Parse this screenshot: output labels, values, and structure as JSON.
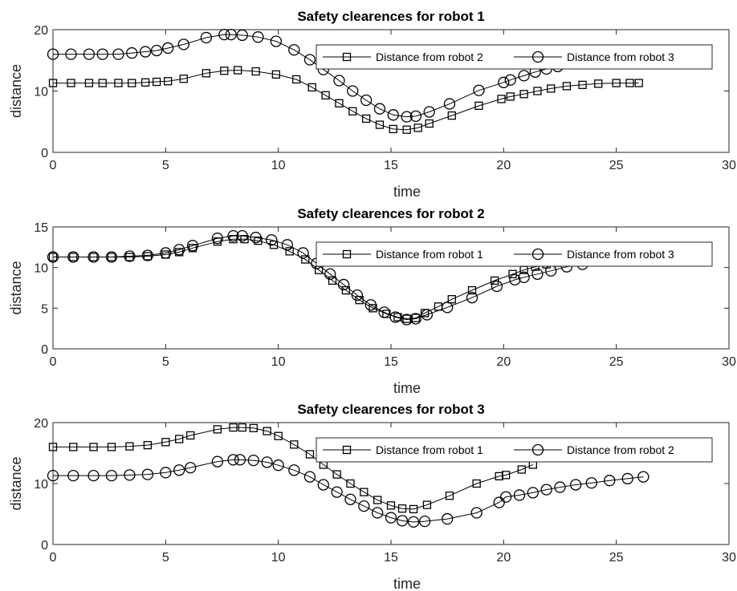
{
  "chart_data": [
    {
      "type": "line",
      "title": "Safety clearences for robot 1",
      "xlabel": "time",
      "ylabel": "distance",
      "xlim": [
        0,
        30
      ],
      "ylim": [
        0,
        20
      ],
      "xticks": [
        0,
        5,
        10,
        15,
        20,
        25,
        30
      ],
      "yticks": [
        0,
        10,
        20
      ],
      "grid": false,
      "legend_placement": "top-right",
      "series": [
        {
          "name": "Distance from robot 2",
          "marker": "square",
          "x": [
            0,
            0.8,
            1.6,
            2.2,
            2.9,
            3.5,
            4.1,
            4.6,
            5.1,
            5.8,
            6.8,
            7.6,
            8.2,
            9.0,
            9.9,
            10.8,
            11.5,
            12.1,
            12.7,
            13.3,
            13.9,
            14.5,
            15.1,
            15.7,
            16.2,
            16.7,
            17.7,
            18.9,
            19.9,
            20.3,
            20.9,
            21.5,
            22.1,
            22.8,
            23.5,
            24.2,
            25.0,
            25.6,
            26.0
          ],
          "y": [
            11.3,
            11.3,
            11.3,
            11.3,
            11.3,
            11.3,
            11.4,
            11.5,
            11.6,
            12.0,
            12.9,
            13.3,
            13.4,
            13.2,
            12.7,
            11.9,
            10.6,
            9.3,
            8.0,
            6.7,
            5.5,
            4.5,
            3.8,
            3.7,
            4.0,
            4.7,
            6.0,
            7.6,
            8.7,
            9.1,
            9.5,
            10.0,
            10.4,
            10.8,
            11.0,
            11.2,
            11.3,
            11.3,
            11.3
          ]
        },
        {
          "name": "Distance from robot 3",
          "marker": "circle",
          "x": [
            0,
            0.8,
            1.6,
            2.2,
            2.9,
            3.5,
            4.1,
            4.6,
            5.1,
            5.8,
            6.8,
            7.6,
            7.9,
            8.4,
            9.1,
            9.9,
            10.7,
            11.4,
            12.0,
            12.7,
            13.3,
            13.9,
            14.5,
            15.1,
            15.7,
            16.1,
            16.7,
            17.6,
            18.9,
            20.0,
            20.3,
            20.9,
            21.4,
            21.9,
            22.4
          ],
          "y": [
            16.0,
            16.0,
            16.0,
            16.0,
            16.0,
            16.2,
            16.4,
            16.6,
            17.0,
            17.6,
            18.7,
            19.2,
            19.2,
            19.1,
            18.8,
            18.1,
            16.7,
            15.1,
            13.5,
            11.7,
            10.0,
            8.5,
            7.1,
            6.1,
            5.8,
            5.9,
            6.6,
            7.9,
            10.1,
            11.4,
            11.8,
            12.5,
            13.1,
            13.6,
            14.0
          ]
        }
      ]
    },
    {
      "type": "line",
      "title": "Safety clearences for robot 2",
      "xlabel": "time",
      "ylabel": "distance",
      "xlim": [
        0,
        30
      ],
      "ylim": [
        0,
        15
      ],
      "xticks": [
        0,
        5,
        10,
        15,
        20,
        25,
        30
      ],
      "yticks": [
        0,
        5,
        10,
        15
      ],
      "grid": false,
      "legend_placement": "top-right",
      "series": [
        {
          "name": "Distance from robot 1",
          "marker": "square",
          "x": [
            0,
            0.9,
            1.8,
            2.6,
            3.4,
            4.2,
            5.0,
            5.6,
            6.2,
            7.3,
            8.0,
            8.5,
            9.1,
            9.8,
            10.5,
            11.2,
            11.8,
            12.4,
            13.0,
            13.6,
            14.2,
            14.8,
            15.3,
            15.7,
            16.1,
            16.5,
            17.1,
            17.7,
            18.6,
            19.6,
            20.4,
            20.9,
            21.4,
            21.9,
            22.4
          ],
          "y": [
            11.3,
            11.3,
            11.3,
            11.3,
            11.3,
            11.4,
            11.6,
            11.9,
            12.4,
            13.2,
            13.5,
            13.5,
            13.3,
            12.8,
            12.0,
            11.0,
            9.7,
            8.4,
            7.2,
            6.0,
            5.0,
            4.3,
            3.9,
            3.7,
            3.8,
            4.4,
            5.2,
            6.1,
            7.2,
            8.4,
            9.2,
            9.7,
            10.1,
            10.4,
            10.6
          ]
        },
        {
          "name": "Distance from robot 3",
          "marker": "circle",
          "x": [
            0,
            0.9,
            1.8,
            2.6,
            3.4,
            4.2,
            5.0,
            5.6,
            6.2,
            7.3,
            8.0,
            8.4,
            9.0,
            9.7,
            10.4,
            11.1,
            11.7,
            12.3,
            12.9,
            13.5,
            14.1,
            14.7,
            15.2,
            15.7,
            16.1,
            16.6,
            17.5,
            18.6,
            19.7,
            20.5,
            20.9,
            21.5,
            22.1,
            22.8,
            23.5
          ],
          "y": [
            11.3,
            11.3,
            11.3,
            11.3,
            11.4,
            11.5,
            11.8,
            12.2,
            12.7,
            13.6,
            13.9,
            13.9,
            13.7,
            13.4,
            12.8,
            11.8,
            10.5,
            9.2,
            7.9,
            6.6,
            5.4,
            4.5,
            3.9,
            3.6,
            3.7,
            4.2,
            5.1,
            6.3,
            7.7,
            8.5,
            8.8,
            9.2,
            9.6,
            10.1,
            10.4
          ]
        }
      ]
    },
    {
      "type": "line",
      "title": "Safety clearences for robot 3",
      "xlabel": "time",
      "ylabel": "distance",
      "xlim": [
        0,
        30
      ],
      "ylim": [
        0,
        20
      ],
      "xticks": [
        0,
        5,
        10,
        15,
        20,
        25,
        30
      ],
      "yticks": [
        0,
        10,
        20
      ],
      "grid": false,
      "legend_placement": "top-right",
      "series": [
        {
          "name": "Distance from robot 1",
          "marker": "square",
          "x": [
            0,
            0.9,
            1.8,
            2.6,
            3.4,
            4.2,
            5.0,
            5.6,
            6.1,
            7.3,
            8.0,
            8.4,
            8.9,
            9.5,
            10.0,
            10.7,
            11.4,
            12.0,
            12.6,
            13.2,
            13.8,
            14.4,
            15.0,
            15.5,
            16.0,
            16.6,
            17.6,
            18.8,
            19.8,
            20.1,
            20.8,
            21.3
          ],
          "y": [
            16.0,
            16.0,
            16.0,
            16.0,
            16.1,
            16.3,
            16.8,
            17.3,
            17.9,
            18.9,
            19.2,
            19.2,
            19.1,
            18.6,
            17.8,
            16.4,
            14.8,
            13.1,
            11.5,
            10.0,
            8.6,
            7.3,
            6.4,
            5.9,
            5.8,
            6.5,
            8.0,
            10.0,
            11.2,
            11.4,
            12.3,
            13.1
          ]
        },
        {
          "name": "Distance from robot 2",
          "marker": "circle",
          "x": [
            0,
            0.9,
            1.8,
            2.6,
            3.4,
            4.2,
            5.0,
            5.6,
            6.1,
            7.3,
            8.0,
            8.3,
            8.9,
            9.5,
            10.0,
            10.7,
            11.4,
            12.0,
            12.6,
            13.2,
            13.8,
            14.4,
            15.0,
            15.5,
            16.0,
            16.5,
            17.5,
            18.8,
            19.8,
            20.1,
            20.7,
            21.3,
            21.9,
            22.5,
            23.2,
            23.9,
            24.7,
            25.5,
            26.2
          ],
          "y": [
            11.3,
            11.3,
            11.3,
            11.3,
            11.4,
            11.5,
            11.8,
            12.2,
            12.6,
            13.6,
            13.9,
            13.9,
            13.8,
            13.5,
            13.0,
            12.2,
            11.1,
            9.8,
            8.6,
            7.4,
            6.3,
            5.2,
            4.4,
            3.9,
            3.7,
            3.8,
            4.2,
            5.2,
            6.9,
            7.8,
            8.1,
            8.5,
            9.0,
            9.4,
            9.8,
            10.1,
            10.5,
            10.8,
            11.1
          ]
        }
      ]
    }
  ]
}
